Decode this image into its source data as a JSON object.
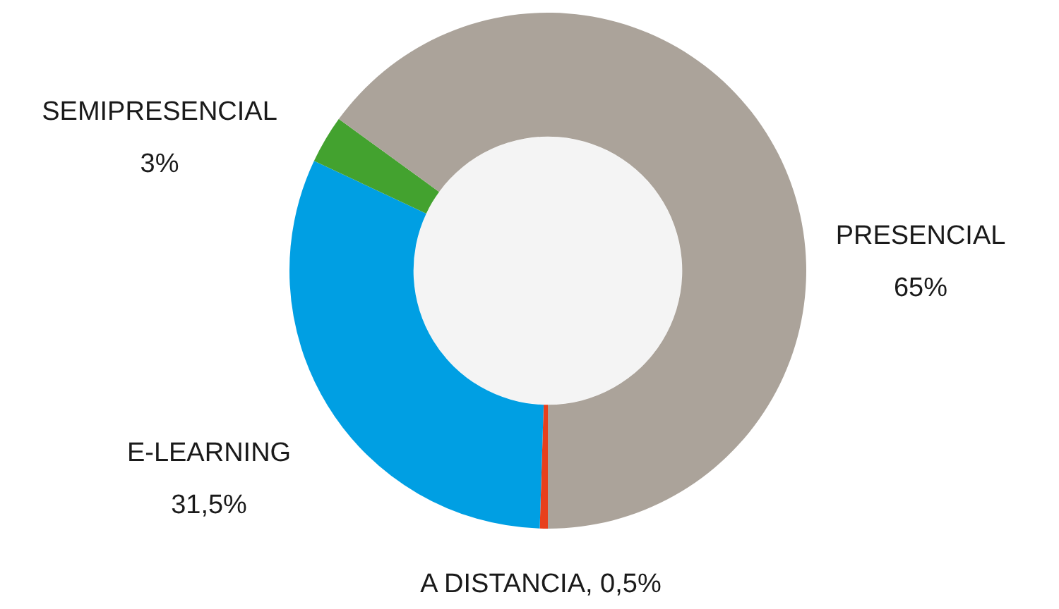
{
  "chart_data": {
    "type": "donut",
    "categories": [
      "A DISTANCIA",
      "E-LEARNING",
      "SEMIPRESENCIAL",
      "PRESENCIAL"
    ],
    "values": [
      0.5,
      31.5,
      3,
      65
    ],
    "colors": [
      "#e8401c",
      "#009fe3",
      "#43a22f",
      "#aba39a"
    ],
    "value_labels": [
      "0,5%",
      "31,5%",
      "3%",
      "65%"
    ],
    "legend": false
  }
}
